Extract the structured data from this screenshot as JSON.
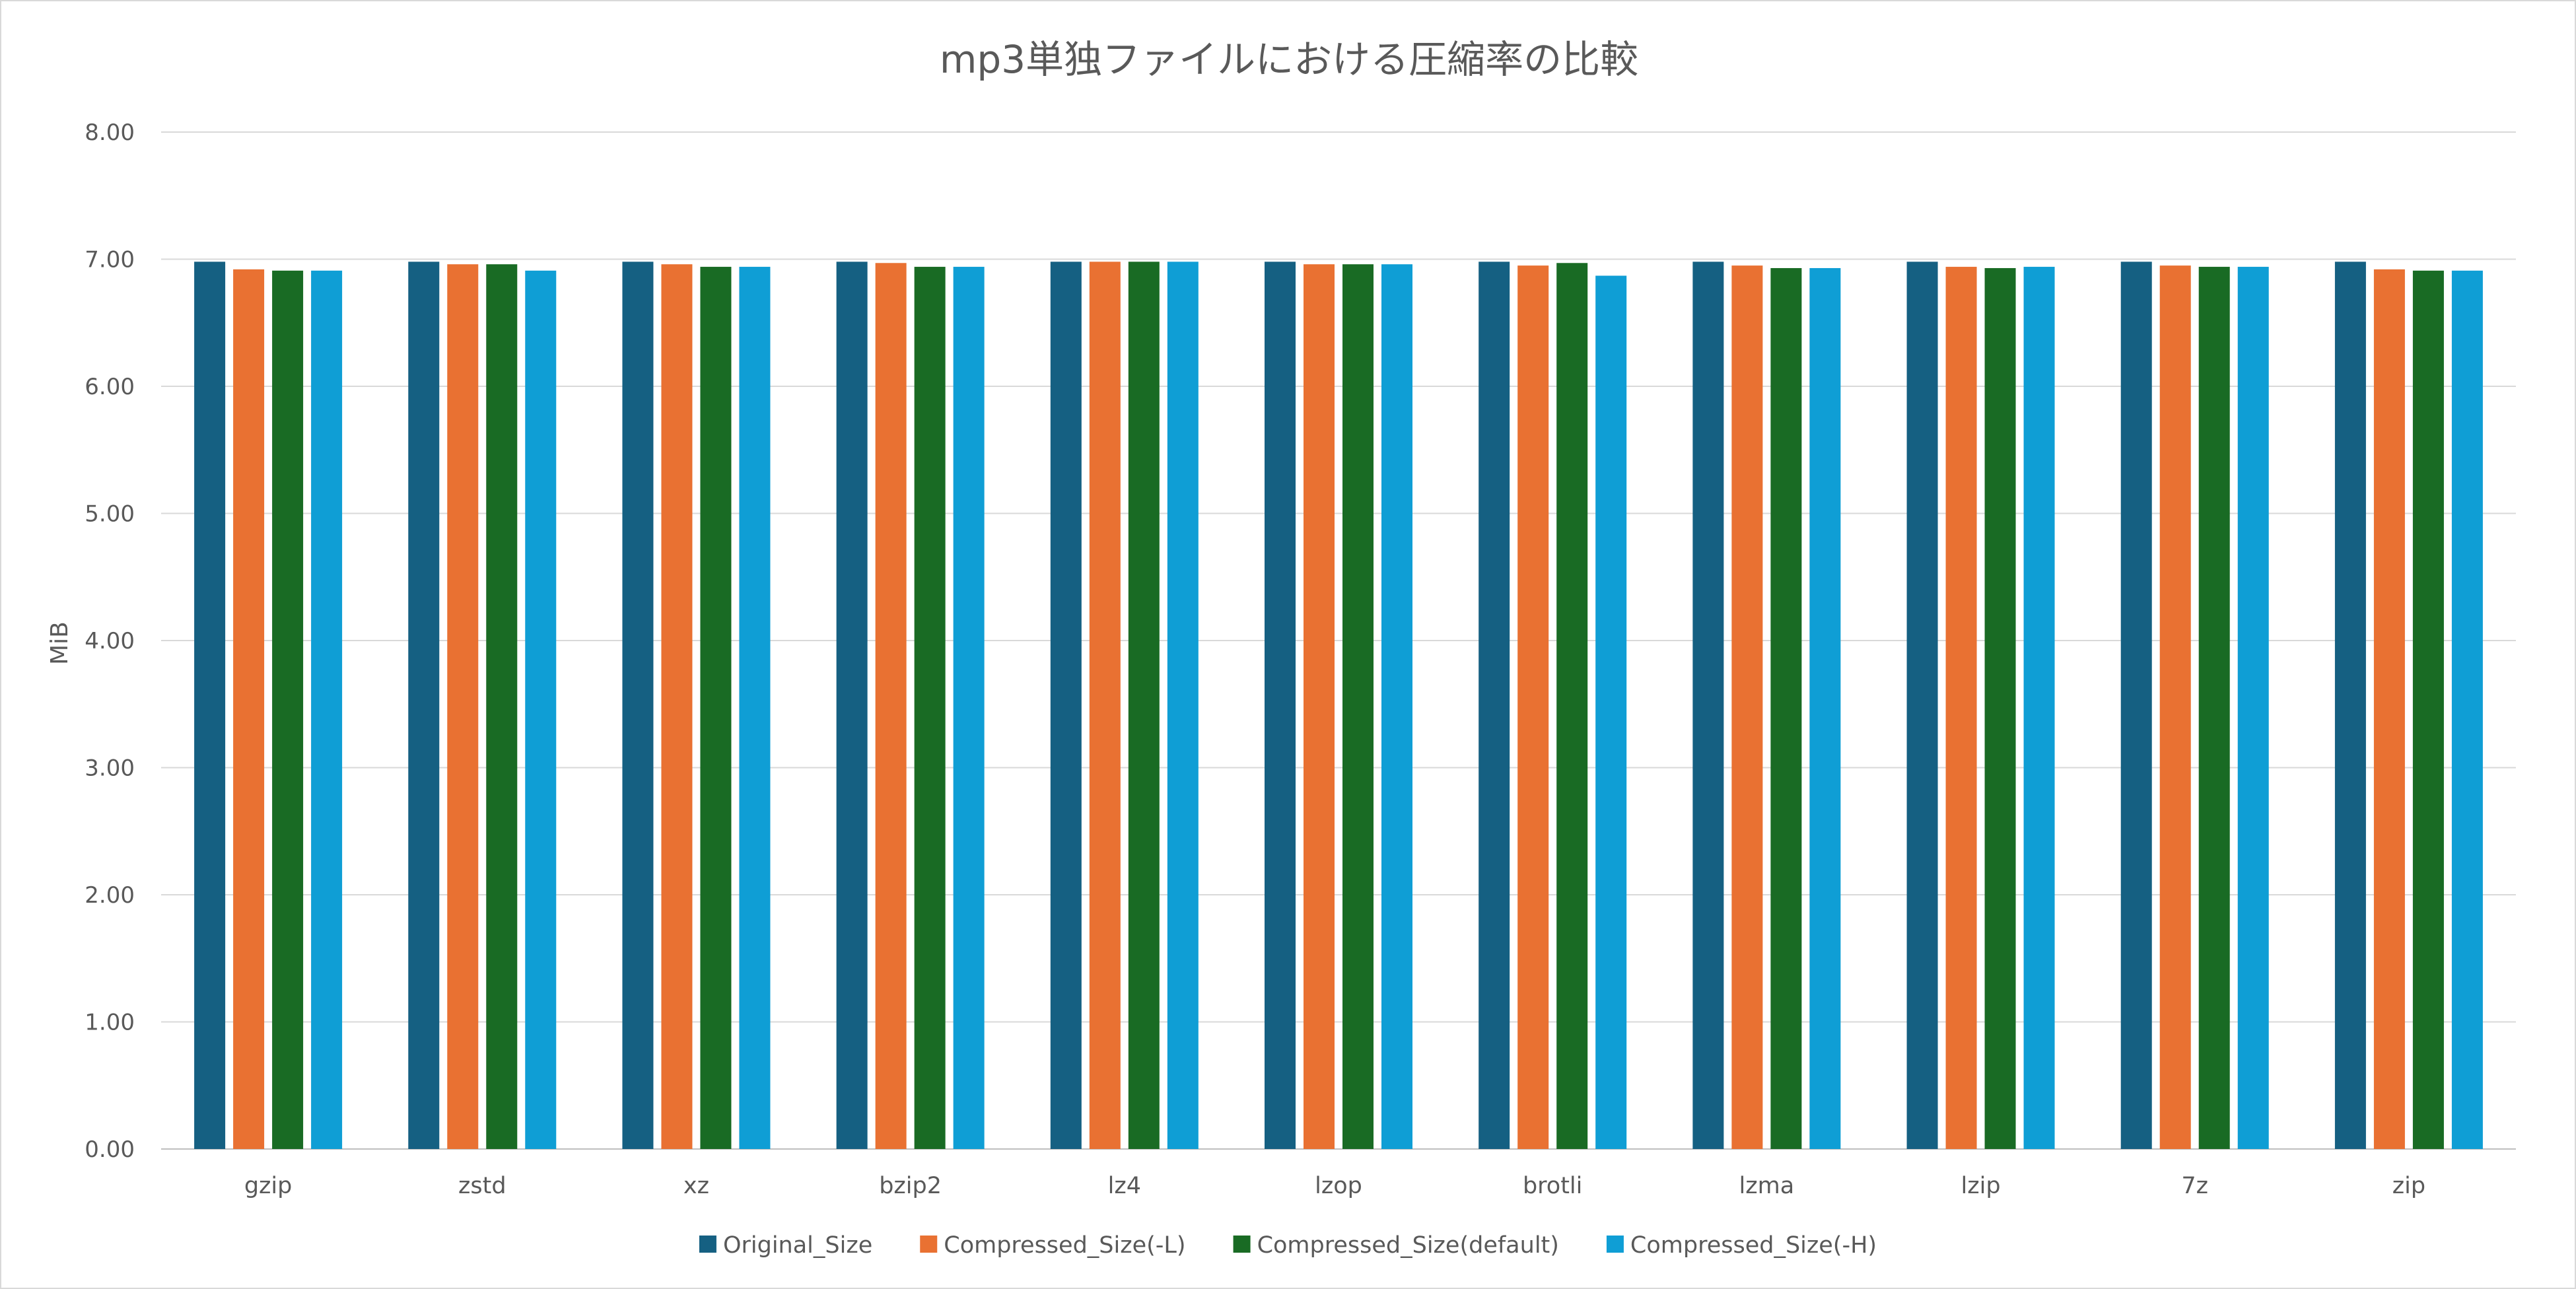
{
  "chart_data": {
    "type": "bar",
    "title": "mp3単独ファイルにおける圧縮率の比較",
    "xlabel": "",
    "ylabel": "MiB",
    "ylim": [
      0,
      8
    ],
    "yticks": [
      "0.00",
      "1.00",
      "2.00",
      "3.00",
      "4.00",
      "5.00",
      "6.00",
      "7.00",
      "8.00"
    ],
    "grid": true,
    "legend_position": "bottom",
    "categories": [
      "gzip",
      "zstd",
      "xz",
      "bzip2",
      "lz4",
      "lzop",
      "brotli",
      "lzma",
      "lzip",
      "7z",
      "zip"
    ],
    "series": [
      {
        "name": "Original_Size",
        "color": "#156082",
        "values": [
          6.98,
          6.98,
          6.98,
          6.98,
          6.98,
          6.98,
          6.98,
          6.98,
          6.98,
          6.98,
          6.98
        ]
      },
      {
        "name": "Compressed_Size(-L)",
        "color": "#E97132",
        "values": [
          6.92,
          6.96,
          6.96,
          6.97,
          6.98,
          6.96,
          6.95,
          6.95,
          6.94,
          6.95,
          6.92
        ]
      },
      {
        "name": "Compressed_Size(default)",
        "color": "#196B24",
        "values": [
          6.91,
          6.96,
          6.94,
          6.94,
          6.98,
          6.96,
          6.97,
          6.93,
          6.93,
          6.94,
          6.91
        ]
      },
      {
        "name": "Compressed_Size(-H)",
        "color": "#0F9ED5",
        "values": [
          6.91,
          6.91,
          6.94,
          6.94,
          6.98,
          6.96,
          6.87,
          6.93,
          6.94,
          6.94,
          6.91
        ]
      }
    ]
  }
}
